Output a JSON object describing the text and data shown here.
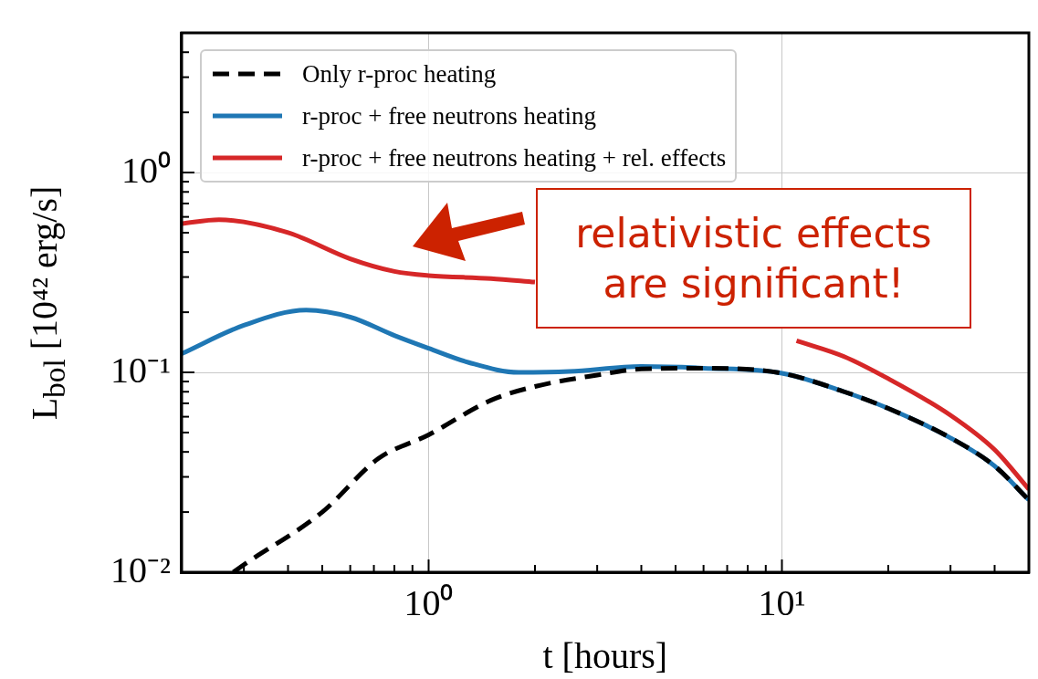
{
  "chart_data": {
    "type": "line",
    "xlabel": "t [hours]",
    "ylabel": "L$_{bol}$ [10⁴² erg/s]",
    "log": "xy",
    "grid": true,
    "legend": "top left",
    "xlim": [
      0.2,
      50
    ],
    "ylim": [
      0.01,
      5
    ],
    "xticks": [
      {
        "value": 0.3,
        "label": null
      },
      {
        "value": 0.4,
        "label": null
      },
      {
        "value": 0.5,
        "label": null
      },
      {
        "value": 0.6,
        "label": null
      },
      {
        "value": 0.7,
        "label": null
      },
      {
        "value": 0.8,
        "label": null
      },
      {
        "value": 0.9,
        "label": null
      },
      {
        "value": 1,
        "label": "10⁰"
      },
      {
        "value": 2,
        "label": null
      },
      {
        "value": 3,
        "label": null
      },
      {
        "value": 4,
        "label": null
      },
      {
        "value": 5,
        "label": null
      },
      {
        "value": 6,
        "label": null
      },
      {
        "value": 7,
        "label": null
      },
      {
        "value": 8,
        "label": null
      },
      {
        "value": 9,
        "label": null
      },
      {
        "value": 10,
        "label": "10¹"
      },
      {
        "value": 20,
        "label": null
      },
      {
        "value": 30,
        "label": null
      },
      {
        "value": 40,
        "label": null
      }
    ],
    "yticks": [
      {
        "value": 0.01,
        "label": "10⁻²"
      },
      {
        "value": 0.02,
        "label": null
      },
      {
        "value": 0.03,
        "label": null
      },
      {
        "value": 0.04,
        "label": null
      },
      {
        "value": 0.05,
        "label": null
      },
      {
        "value": 0.06,
        "label": null
      },
      {
        "value": 0.07,
        "label": null
      },
      {
        "value": 0.08,
        "label": null
      },
      {
        "value": 0.09,
        "label": null
      },
      {
        "value": 0.1,
        "label": "10⁻¹"
      },
      {
        "value": 0.2,
        "label": null
      },
      {
        "value": 0.3,
        "label": null
      },
      {
        "value": 0.4,
        "label": null
      },
      {
        "value": 0.5,
        "label": null
      },
      {
        "value": 0.6,
        "label": null
      },
      {
        "value": 0.7,
        "label": null
      },
      {
        "value": 0.8,
        "label": null
      },
      {
        "value": 0.9,
        "label": null
      },
      {
        "value": 1,
        "label": "10⁰"
      },
      {
        "value": 2,
        "label": null
      },
      {
        "value": 3,
        "label": null
      },
      {
        "value": 4,
        "label": null
      },
      {
        "value": 5,
        "label": null
      }
    ],
    "annotations": [
      "relativistic effects are significant!"
    ],
    "series": [
      {
        "name": "Only r-proc heating",
        "color": "#000000",
        "line_style": "dashed",
        "x": [
          0.28,
          0.3,
          0.5,
          0.72,
          1,
          1.5,
          2,
          3,
          4,
          6,
          10,
          15,
          20,
          30,
          40,
          50
        ],
        "values": [
          0.01,
          0.0109,
          0.02,
          0.037,
          0.0487,
          0.0725,
          0.085,
          0.097,
          0.104,
          0.105,
          0.099,
          0.08,
          0.066,
          0.047,
          0.034,
          0.023
        ]
      },
      {
        "name": "r-proc + free neutrons heating",
        "color": "#1f77b4",
        "line_style": "solid",
        "x": [
          0.2,
          0.3,
          0.45,
          0.6,
          0.8,
          1,
          1.3,
          1.8,
          2.5,
          4,
          6,
          10,
          15,
          20,
          30,
          40,
          50
        ],
        "values": [
          0.124,
          0.172,
          0.205,
          0.189,
          0.153,
          0.132,
          0.112,
          0.1,
          0.101,
          0.107,
          0.105,
          0.099,
          0.08,
          0.066,
          0.047,
          0.034,
          0.023
        ]
      },
      {
        "name": "r-proc + free neutrons heating + rel. effects",
        "color": "#d62728",
        "line_style": "solid",
        "x": [
          0.2,
          0.255,
          0.4,
          0.6,
          0.8,
          1,
          1.5,
          2,
          5,
          11,
          15,
          20,
          30,
          40,
          50
        ],
        "values": [
          0.555,
          0.58,
          0.5,
          0.37,
          0.32,
          0.305,
          0.295,
          0.283,
          null,
          0.144,
          0.12,
          0.093,
          0.061,
          0.041,
          0.026
        ]
      }
    ]
  }
}
